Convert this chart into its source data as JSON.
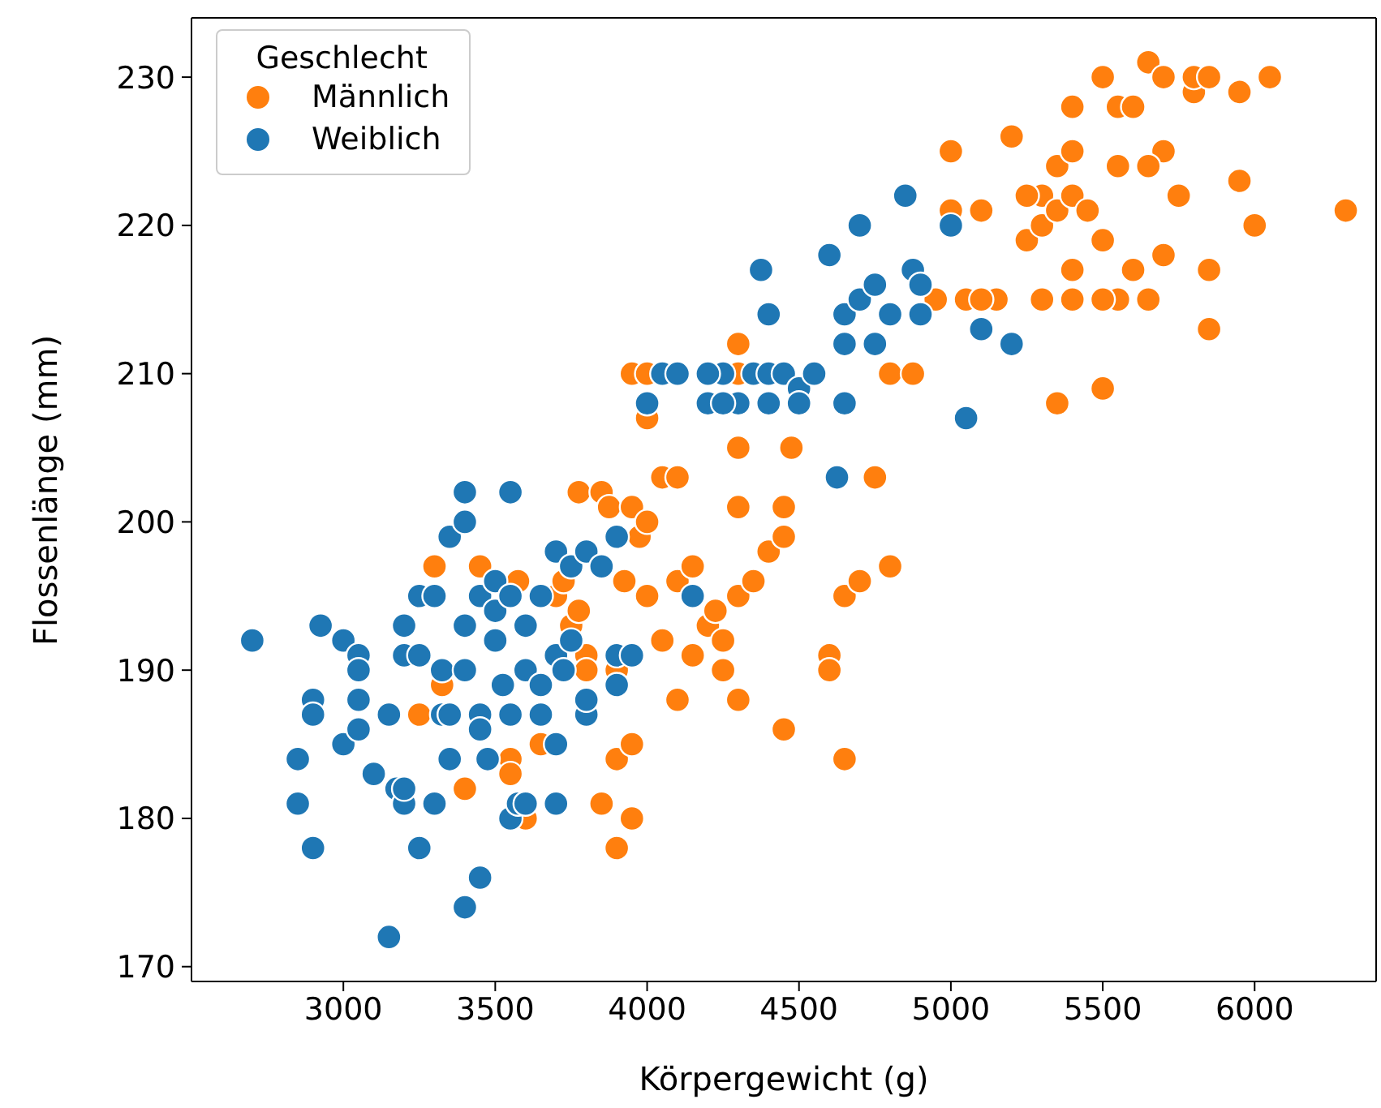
{
  "chart_data": {
    "type": "scatter",
    "xlabel": "Körpergewicht (g)",
    "ylabel": "Flossenlänge (mm)",
    "legend_title": "Geschlecht",
    "legend": "top left",
    "grid": false,
    "marker": "circle",
    "xlim": [
      2500,
      6400
    ],
    "ylim": [
      169,
      234
    ],
    "xticks": [
      3000,
      3500,
      4000,
      4500,
      5000,
      5500,
      6000
    ],
    "yticks": [
      170,
      180,
      190,
      200,
      210,
      220,
      230
    ],
    "series": [
      {
        "name": "Männlich",
        "color": "#ff7f0e",
        "x": [
          3250,
          3300,
          3325,
          3400,
          3450,
          3550,
          3550,
          3600,
          3650,
          3700,
          3725,
          3750,
          3775,
          3775,
          3800,
          3800,
          3850,
          3850,
          3875,
          3900,
          3900,
          3900,
          3925,
          3950,
          3950,
          3950,
          3975,
          4000,
          4000,
          4050,
          4100,
          4050,
          4100,
          4100,
          4150,
          4150,
          4200,
          4250,
          4300,
          4300,
          4300,
          4300,
          4300,
          4350,
          4400,
          4450,
          4450,
          4450,
          4475,
          4600,
          4600,
          4650,
          4650,
          4700,
          4750,
          4800,
          4800,
          3950,
          4000,
          4300,
          4950,
          5000,
          5000,
          5050,
          5100,
          5150,
          5200,
          5250,
          5300,
          5300,
          5300,
          5350,
          5350,
          5400,
          5400,
          5400,
          5400,
          5450,
          5500,
          5500,
          5550,
          5550,
          5600,
          5650,
          5700,
          5700,
          5700,
          5750,
          5800,
          5800,
          5850,
          5850,
          5850,
          5950,
          5950,
          6000,
          6050,
          6300,
          5500,
          5550,
          5650,
          5600,
          5500,
          5350,
          5250,
          5400,
          5650,
          5100,
          4875,
          4225,
          4250,
          4000,
          3575
        ],
        "values": [
          187,
          197,
          189,
          182,
          197,
          184,
          183,
          180,
          185,
          195,
          196,
          193,
          194,
          202,
          191,
          190,
          181,
          202,
          201,
          178,
          184,
          190,
          196,
          180,
          185,
          201,
          199,
          200,
          207,
          203,
          203,
          192,
          188,
          196,
          197,
          191,
          193,
          190,
          188,
          195,
          201,
          212,
          205,
          196,
          198,
          199,
          201,
          186,
          205,
          191,
          190,
          184,
          195,
          196,
          203,
          197,
          210,
          210,
          210,
          210,
          215,
          225,
          221,
          215,
          221,
          215,
          226,
          219,
          220,
          215,
          222,
          208,
          221,
          222,
          217,
          215,
          228,
          221,
          209,
          230,
          228,
          224,
          228,
          231,
          230,
          225,
          218,
          222,
          229,
          230,
          230,
          213,
          217,
          223,
          229,
          220,
          230,
          221,
          219,
          215,
          215,
          217,
          215,
          224,
          222,
          225,
          224,
          215,
          210,
          194,
          192,
          195,
          196
        ]
      },
      {
        "name": "Weiblich",
        "color": "#1f77b4",
        "x": [
          2700,
          2850,
          2850,
          2900,
          2900,
          2900,
          2925,
          3000,
          3000,
          3050,
          3050,
          3050,
          3050,
          3100,
          3150,
          3150,
          3175,
          3200,
          3200,
          3200,
          3200,
          3250,
          3250,
          3250,
          3300,
          3300,
          3325,
          3325,
          3350,
          3350,
          3350,
          3400,
          3400,
          3400,
          3400,
          3400,
          3450,
          3450,
          3450,
          3450,
          3475,
          3500,
          3500,
          3500,
          3525,
          3550,
          3550,
          3550,
          3550,
          3575,
          3600,
          3600,
          3600,
          3650,
          3650,
          3650,
          3700,
          3700,
          3700,
          3700,
          3725,
          3750,
          3750,
          3800,
          3800,
          3800,
          3850,
          3900,
          3900,
          3900,
          3950,
          4000,
          4050,
          4100,
          4150,
          4200,
          4250,
          4300,
          4350,
          4375,
          4400,
          4400,
          4450,
          4500,
          4550,
          4600,
          4625,
          4650,
          4650,
          4700,
          4700,
          4750,
          4750,
          4800,
          4850,
          4875,
          4900,
          4900,
          5000,
          5050,
          5100,
          5200,
          4650,
          4500,
          4400,
          4200,
          4250
        ],
        "values": [
          192,
          184,
          181,
          178,
          188,
          187,
          193,
          185,
          192,
          191,
          190,
          188,
          186,
          183,
          172,
          187,
          182,
          181,
          182,
          191,
          193,
          178,
          191,
          195,
          181,
          195,
          187,
          190,
          184,
          199,
          187,
          174,
          200,
          202,
          193,
          190,
          176,
          187,
          195,
          186,
          184,
          192,
          194,
          196,
          189,
          180,
          187,
          202,
          195,
          181,
          190,
          193,
          181,
          189,
          187,
          195,
          185,
          181,
          191,
          198,
          190,
          197,
          192,
          198,
          187,
          188,
          197,
          189,
          199,
          191,
          191,
          208,
          210,
          210,
          195,
          208,
          210,
          208,
          210,
          217,
          214,
          210,
          210,
          209,
          210,
          218,
          203,
          214,
          212,
          215,
          220,
          216,
          212,
          214,
          222,
          217,
          214,
          216,
          220,
          207,
          213,
          212,
          208,
          208,
          208,
          210,
          208
        ]
      }
    ]
  }
}
